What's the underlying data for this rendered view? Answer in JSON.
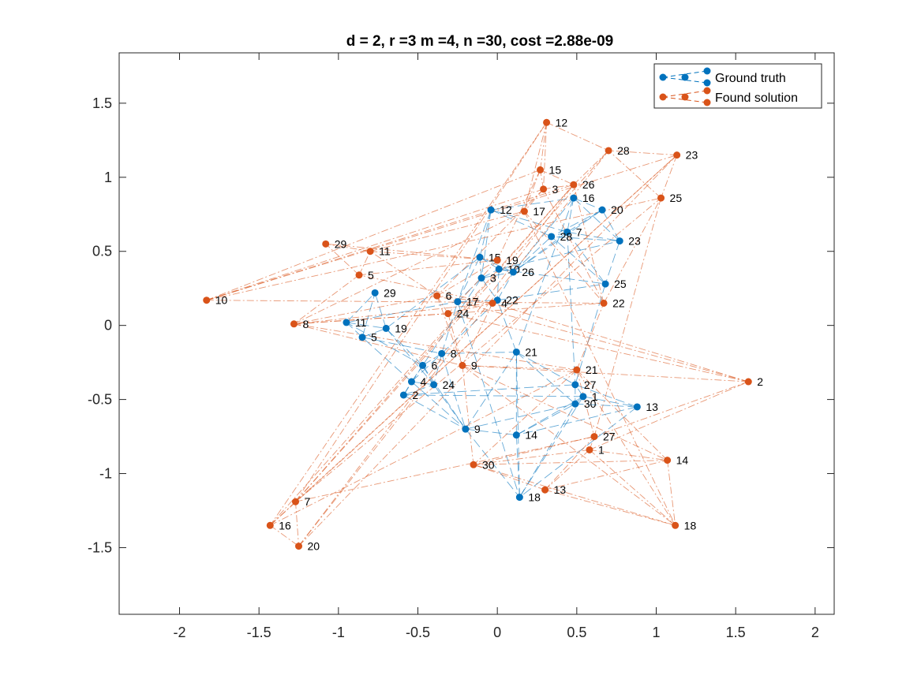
{
  "chart_data": {
    "type": "scatter",
    "title": "d = 2, r =3 m =4, n =30, cost =2.88e-09",
    "xlabel": "",
    "ylabel": "",
    "xlim": [
      -2.38,
      2.12
    ],
    "ylim": [
      -1.95,
      1.84
    ],
    "xticks": [
      -2,
      -1.5,
      -1,
      -0.5,
      0,
      0.5,
      1,
      1.5,
      2
    ],
    "xtick_labels": [
      "-2",
      "-1.5",
      "-1",
      "-0.5",
      "0",
      "0.5",
      "1",
      "1.5",
      "2"
    ],
    "yticks": [
      -1.5,
      -1,
      -0.5,
      0,
      0.5,
      1,
      1.5
    ],
    "ytick_labels": [
      "-1.5",
      "-1",
      "-0.5",
      "0",
      "0.5",
      "1",
      "1.5"
    ],
    "grid": false,
    "legend_position": "top-right",
    "series": [
      {
        "name": "Ground truth",
        "color": "#0072BD",
        "point_labels": [
          "1",
          "2",
          "3",
          "4",
          "5",
          "6",
          "7",
          "8",
          "9",
          "10",
          "11",
          "12",
          "13",
          "14",
          "15",
          "16",
          "17",
          "18",
          "19",
          "20",
          "21",
          "22",
          "23",
          "24",
          "25",
          "26",
          "27",
          "28",
          "29",
          "30"
        ],
        "points": [
          [
            0.54,
            -0.48
          ],
          [
            -0.59,
            -0.47
          ],
          [
            -0.1,
            0.32
          ],
          [
            -0.54,
            -0.38
          ],
          [
            -0.85,
            -0.08
          ],
          [
            -0.47,
            -0.27
          ],
          [
            0.44,
            0.63
          ],
          [
            -0.35,
            -0.19
          ],
          [
            -0.2,
            -0.7
          ],
          [
            0.01,
            0.38
          ],
          [
            -0.95,
            0.02
          ],
          [
            -0.04,
            0.78
          ],
          [
            0.88,
            -0.55
          ],
          [
            0.12,
            -0.74
          ],
          [
            -0.11,
            0.46
          ],
          [
            0.48,
            0.86
          ],
          [
            -0.25,
            0.16
          ],
          [
            0.14,
            -1.16
          ],
          [
            -0.7,
            -0.02
          ],
          [
            0.66,
            0.78
          ],
          [
            0.12,
            -0.18
          ],
          [
            0.0,
            0.17
          ],
          [
            0.77,
            0.57
          ],
          [
            -0.4,
            -0.4
          ],
          [
            0.68,
            0.28
          ],
          [
            0.1,
            0.36
          ],
          [
            0.49,
            -0.4
          ],
          [
            0.34,
            0.6
          ],
          [
            -0.77,
            0.22
          ],
          [
            0.49,
            -0.53
          ]
        ]
      },
      {
        "name": "Found solution",
        "color": "#D95319",
        "point_labels": [
          "1",
          "2",
          "3",
          "4",
          "5",
          "6",
          "7",
          "8",
          "9",
          "10",
          "11",
          "12",
          "13",
          "14",
          "15",
          "16",
          "17",
          "18",
          "19",
          "20",
          "21",
          "22",
          "23",
          "24",
          "25",
          "26",
          "27",
          "28",
          "29",
          "30"
        ],
        "points": [
          [
            0.58,
            -0.84
          ],
          [
            1.58,
            -0.38
          ],
          [
            0.29,
            0.92
          ],
          [
            -0.03,
            0.15
          ],
          [
            -0.87,
            0.34
          ],
          [
            -0.38,
            0.2
          ],
          [
            -1.27,
            -1.19
          ],
          [
            -1.28,
            0.01
          ],
          [
            -0.22,
            -0.27
          ],
          [
            -1.83,
            0.17
          ],
          [
            -0.8,
            0.5
          ],
          [
            0.31,
            1.37
          ],
          [
            0.3,
            -1.11
          ],
          [
            1.07,
            -0.91
          ],
          [
            0.27,
            1.05
          ],
          [
            -1.43,
            -1.35
          ],
          [
            0.17,
            0.77
          ],
          [
            1.12,
            -1.35
          ],
          [
            0.0,
            0.44
          ],
          [
            -1.25,
            -1.49
          ],
          [
            0.5,
            -0.3
          ],
          [
            0.67,
            0.15
          ],
          [
            1.13,
            1.15
          ],
          [
            -0.31,
            0.08
          ],
          [
            1.03,
            0.86
          ],
          [
            0.48,
            0.95
          ],
          [
            0.61,
            -0.75
          ],
          [
            0.7,
            1.18
          ],
          [
            -1.08,
            0.55
          ],
          [
            -0.15,
            -0.94
          ]
        ]
      }
    ],
    "edges": [
      [
        1,
        2
      ],
      [
        1,
        13
      ],
      [
        1,
        14
      ],
      [
        1,
        27
      ],
      [
        1,
        30
      ],
      [
        1,
        18
      ],
      [
        2,
        4
      ],
      [
        2,
        6
      ],
      [
        2,
        24
      ],
      [
        2,
        9
      ],
      [
        2,
        27
      ],
      [
        3,
        10
      ],
      [
        3,
        15
      ],
      [
        3,
        22
      ],
      [
        3,
        26
      ],
      [
        3,
        17
      ],
      [
        3,
        6
      ],
      [
        4,
        24
      ],
      [
        4,
        5
      ],
      [
        4,
        6
      ],
      [
        4,
        8
      ],
      [
        4,
        9
      ],
      [
        5,
        11
      ],
      [
        5,
        29
      ],
      [
        5,
        8
      ],
      [
        5,
        19
      ],
      [
        6,
        8
      ],
      [
        6,
        19
      ],
      [
        6,
        11
      ],
      [
        6,
        24
      ],
      [
        6,
        9
      ],
      [
        7,
        16
      ],
      [
        7,
        20
      ],
      [
        7,
        28
      ],
      [
        7,
        23
      ],
      [
        7,
        12
      ],
      [
        7,
        26
      ],
      [
        7,
        25
      ],
      [
        7,
        27
      ],
      [
        8,
        17
      ],
      [
        8,
        22
      ],
      [
        8,
        21
      ],
      [
        8,
        9
      ],
      [
        8,
        24
      ],
      [
        9,
        14
      ],
      [
        9,
        30
      ],
      [
        9,
        18
      ],
      [
        9,
        21
      ],
      [
        10,
        26
      ],
      [
        10,
        22
      ],
      [
        10,
        15
      ],
      [
        10,
        25
      ],
      [
        10,
        23
      ],
      [
        11,
        29
      ],
      [
        11,
        19
      ],
      [
        11,
        17
      ],
      [
        12,
        15
      ],
      [
        12,
        28
      ],
      [
        12,
        16
      ],
      [
        12,
        17
      ],
      [
        12,
        3
      ],
      [
        13,
        30
      ],
      [
        13,
        18
      ],
      [
        13,
        14
      ],
      [
        13,
        27
      ],
      [
        14,
        18
      ],
      [
        14,
        21
      ],
      [
        14,
        30
      ],
      [
        15,
        17
      ],
      [
        15,
        19
      ],
      [
        15,
        26
      ],
      [
        16,
        20
      ],
      [
        16,
        26
      ],
      [
        16,
        23
      ],
      [
        16,
        21
      ],
      [
        17,
        22
      ],
      [
        17,
        18
      ],
      [
        18,
        21
      ],
      [
        18,
        30
      ],
      [
        19,
        24
      ],
      [
        19,
        29
      ],
      [
        20,
        28
      ],
      [
        20,
        23
      ],
      [
        20,
        26
      ],
      [
        21,
        27
      ],
      [
        21,
        30
      ],
      [
        21,
        22
      ],
      [
        22,
        26
      ],
      [
        22,
        25
      ],
      [
        23,
        25
      ],
      [
        23,
        28
      ],
      [
        24,
        9
      ],
      [
        25,
        27
      ],
      [
        25,
        28
      ],
      [
        26,
        28
      ],
      [
        27,
        30
      ]
    ]
  },
  "legend": {
    "items": [
      "Ground truth",
      "Found solution"
    ]
  }
}
